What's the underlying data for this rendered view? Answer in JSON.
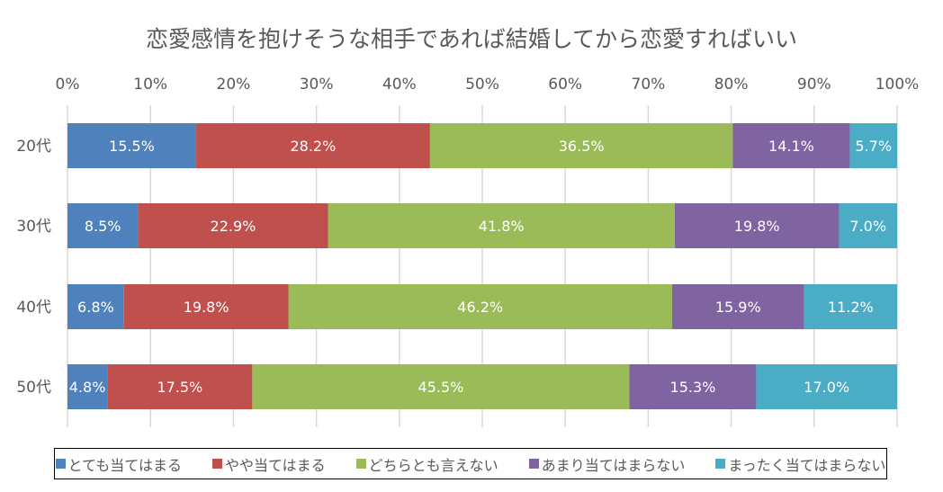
{
  "chart_data": {
    "type": "bar",
    "orientation": "horizontal",
    "stacked": "percent",
    "title": "恋愛感情を抱けそうな相手であれば結婚してから恋愛すればいい",
    "xlabel": "",
    "ylabel": "",
    "xlim": [
      0,
      100
    ],
    "x_ticks": [
      "0%",
      "10%",
      "20%",
      "30%",
      "40%",
      "50%",
      "60%",
      "70%",
      "80%",
      "90%",
      "100%"
    ],
    "x_axis_position": "top",
    "grid": true,
    "legend_position": "bottom",
    "categories": [
      "20代",
      "30代",
      "40代",
      "50代"
    ],
    "series": [
      {
        "name": "とても当てはまる",
        "color": "#4f81bd",
        "values": [
          15.5,
          8.5,
          6.8,
          4.8
        ],
        "labels": [
          "15.5%",
          "8.5%",
          "6.8%",
          "4.8%"
        ]
      },
      {
        "name": "やや当てはまる",
        "color": "#c0504d",
        "values": [
          28.2,
          22.9,
          19.8,
          17.5
        ],
        "labels": [
          "28.2%",
          "22.9%",
          "19.8%",
          "17.5%"
        ]
      },
      {
        "name": "どちらとも言えない",
        "color": "#9bbb59",
        "values": [
          36.5,
          41.8,
          46.2,
          45.5
        ],
        "labels": [
          "36.5%",
          "41.8%",
          "46.2%",
          "45.5%"
        ]
      },
      {
        "name": "あまり当てはまらない",
        "color": "#8064a2",
        "values": [
          14.1,
          19.8,
          15.9,
          15.3
        ],
        "labels": [
          "14.1%",
          "19.8%",
          "15.9%",
          "15.3%"
        ]
      },
      {
        "name": "まったく当てはまらない",
        "color": "#4bacc6",
        "values": [
          5.7,
          7.0,
          11.2,
          17.0
        ],
        "labels": [
          "5.7%",
          "7.0%",
          "11.2%",
          "17.0%"
        ]
      }
    ]
  }
}
